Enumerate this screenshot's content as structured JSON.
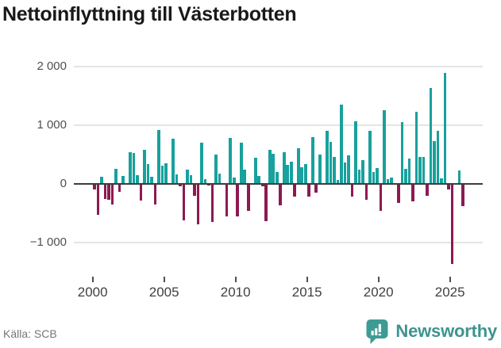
{
  "title": "Nettoinflyttning till Västerbotten",
  "source": "Källa: SCB",
  "branding": {
    "name": "Newsworthy"
  },
  "colors": {
    "positive": "#18a19d",
    "negative": "#8d1a52",
    "grid": "#e4e4e4",
    "zero_line": "#3d3d3d",
    "axis_text": "#4f4f4f",
    "title_text": "#191919",
    "source_text": "#767676",
    "brand_teal": "#3e948e"
  },
  "chart_data": {
    "type": "bar",
    "title": "Nettoinflyttning till Västerbotten",
    "frequency": "quarterly",
    "x_start": "2000 Q1",
    "x_end": "2025 Q4",
    "values": [
      -100,
      -530,
      120,
      -260,
      -280,
      -350,
      250,
      -135,
      135,
      0,
      540,
      530,
      150,
      -290,
      585,
      340,
      120,
      -360,
      915,
      305,
      350,
      0,
      775,
      165,
      -45,
      -630,
      240,
      150,
      -210,
      -700,
      700,
      75,
      -30,
      -655,
      495,
      170,
      0,
      -565,
      780,
      100,
      -565,
      695,
      245,
      -465,
      0,
      445,
      135,
      -45,
      -635,
      585,
      505,
      205,
      -370,
      535,
      315,
      370,
      -215,
      610,
      280,
      335,
      -215,
      795,
      -160,
      495,
      0,
      910,
      720,
      450,
      60,
      1355,
      360,
      485,
      -215,
      1065,
      245,
      405,
      -270,
      900,
      195,
      270,
      -465,
      1260,
      75,
      100,
      0,
      -325,
      1055,
      255,
      430,
      -305,
      1230,
      460,
      460,
      -205,
      1635,
      730,
      905,
      95,
      1890,
      -100,
      -1370,
      10,
      225,
      -380
    ],
    "xticks": [
      {
        "year": 2000,
        "label": "2000"
      },
      {
        "year": 2005,
        "label": "2005"
      },
      {
        "year": 2010,
        "label": "2010"
      },
      {
        "year": 2015,
        "label": "2015"
      },
      {
        "year": 2020,
        "label": "2020"
      },
      {
        "year": 2025,
        "label": "2025"
      }
    ],
    "yticks": [
      {
        "value": 2000,
        "label": "2 000"
      },
      {
        "value": 1000,
        "label": "1 000"
      },
      {
        "value": 0,
        "label": "0"
      },
      {
        "value": -1000,
        "label": "−1 000"
      }
    ],
    "ylim": [
      -1500,
      2200
    ],
    "legend": "none",
    "grid": "horizontal",
    "ylabel": "",
    "xlabel": ""
  }
}
